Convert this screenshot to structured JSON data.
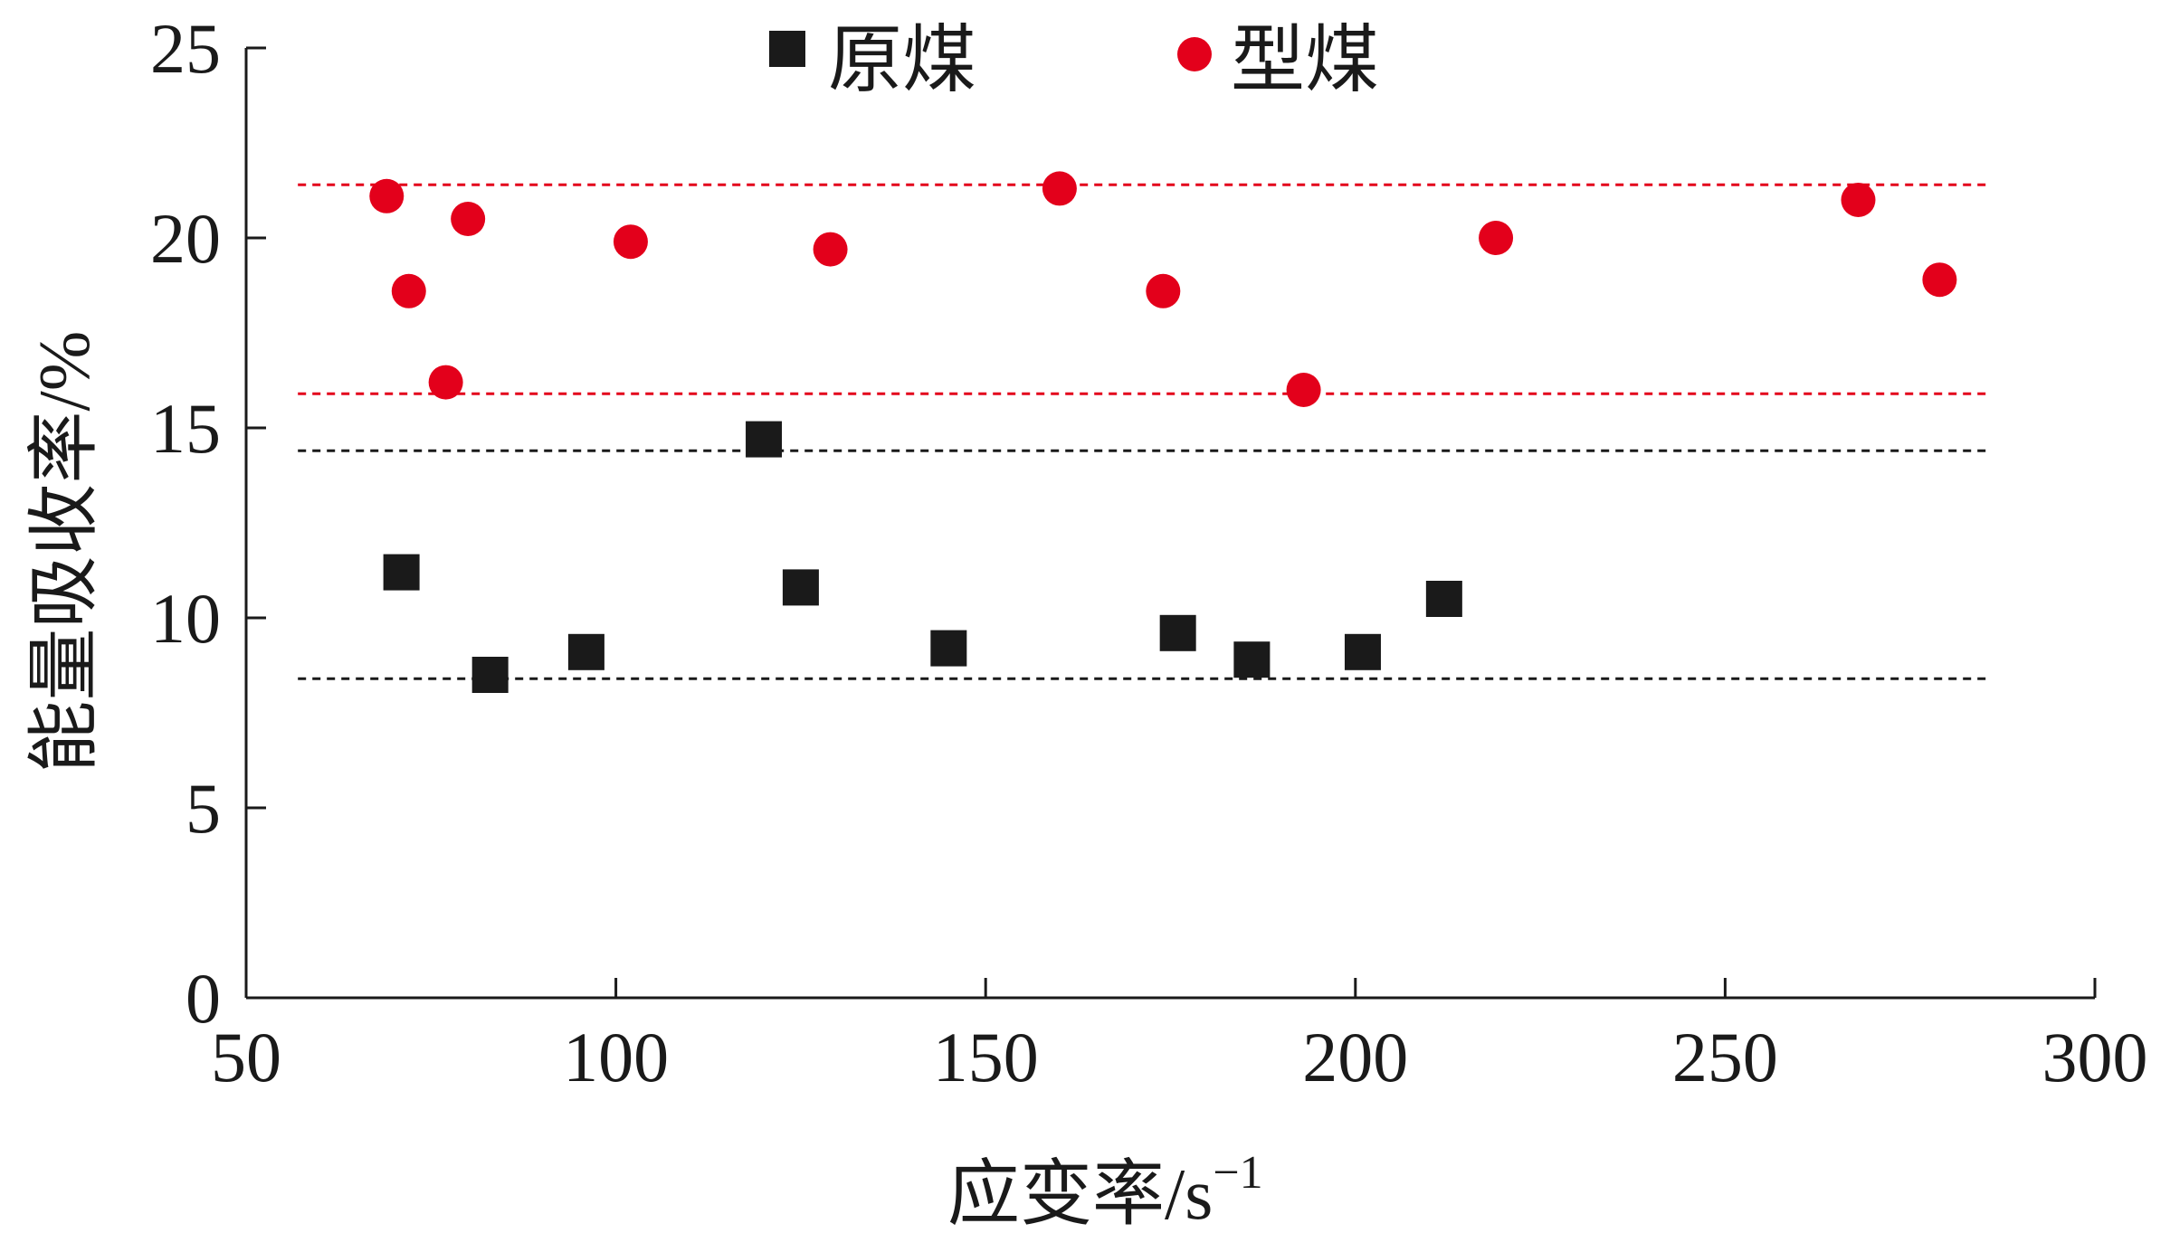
{
  "chart_data": {
    "type": "scatter",
    "xlabel": "应变率/s",
    "xlabel_sup": "−1",
    "ylabel": "能量吸收率/%",
    "xlim": [
      50,
      300
    ],
    "ylim": [
      0,
      25
    ],
    "x_ticks": [
      50,
      100,
      150,
      200,
      250,
      300
    ],
    "y_ticks": [
      0,
      5,
      10,
      15,
      20,
      25
    ],
    "grid": false,
    "legend_position": "top-center",
    "series": [
      {
        "name": "原煤",
        "marker": "square",
        "color": "#1a1a1a",
        "points": [
          {
            "x": 71,
            "y": 11.2
          },
          {
            "x": 83,
            "y": 8.5
          },
          {
            "x": 96,
            "y": 9.1
          },
          {
            "x": 120,
            "y": 14.7
          },
          {
            "x": 125,
            "y": 10.8
          },
          {
            "x": 145,
            "y": 9.2
          },
          {
            "x": 176,
            "y": 9.6
          },
          {
            "x": 186,
            "y": 8.9
          },
          {
            "x": 201,
            "y": 9.1
          },
          {
            "x": 212,
            "y": 10.5
          }
        ]
      },
      {
        "name": "型煤",
        "marker": "circle",
        "color": "#e3001b",
        "points": [
          {
            "x": 69,
            "y": 21.1
          },
          {
            "x": 72,
            "y": 18.6
          },
          {
            "x": 77,
            "y": 16.2
          },
          {
            "x": 80,
            "y": 20.5
          },
          {
            "x": 102,
            "y": 19.9
          },
          {
            "x": 129,
            "y": 19.7
          },
          {
            "x": 160,
            "y": 21.3
          },
          {
            "x": 174,
            "y": 18.6
          },
          {
            "x": 193,
            "y": 16.0
          },
          {
            "x": 219,
            "y": 20.0
          },
          {
            "x": 268,
            "y": 21.0
          },
          {
            "x": 279,
            "y": 18.9
          }
        ]
      }
    ],
    "reference_lines": [
      {
        "y": 21.4,
        "color": "#e3001b",
        "style": "dashed",
        "x_range": [
          57,
          286
        ]
      },
      {
        "y": 15.9,
        "color": "#e3001b",
        "style": "dashed",
        "x_range": [
          57,
          286
        ]
      },
      {
        "y": 14.4,
        "color": "#1a1a1a",
        "style": "dashed",
        "x_range": [
          57,
          286
        ]
      },
      {
        "y": 8.4,
        "color": "#1a1a1a",
        "style": "dashed",
        "x_range": [
          57,
          286
        ]
      }
    ]
  }
}
